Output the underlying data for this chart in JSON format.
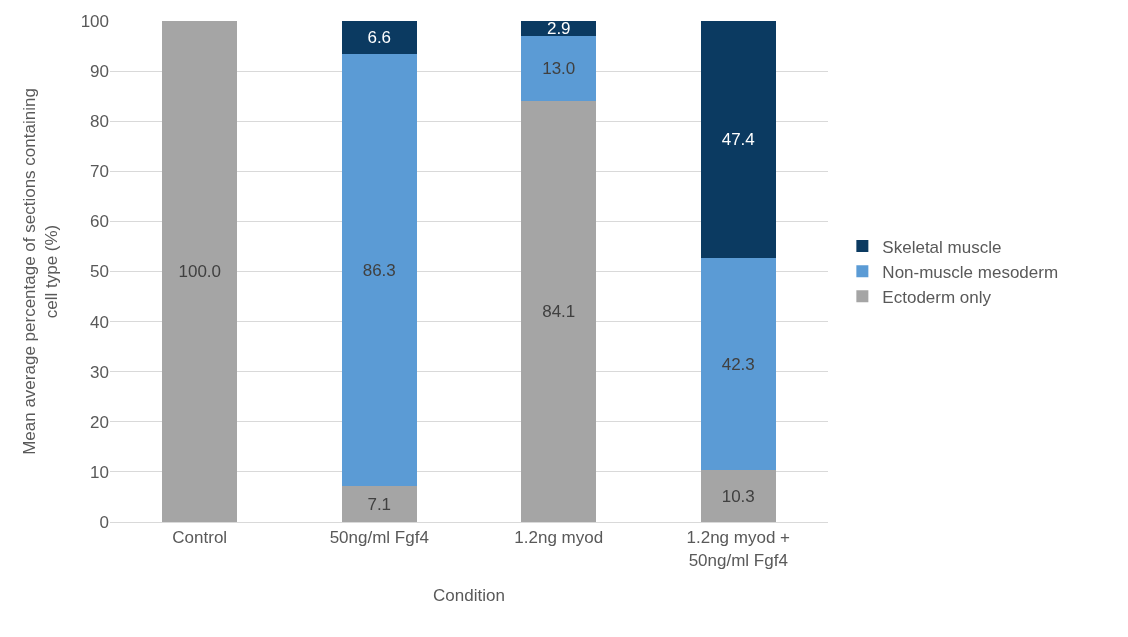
{
  "chart_data": {
    "type": "bar",
    "stacked": true,
    "xlabel": "Condition",
    "ylabel": "Mean average percentage of sections containing cell type (%)",
    "categories": [
      "Control",
      "50ng/ml Fgf4",
      "1.2ng myod",
      "1.2ng myod + 50ng/ml Fgf4"
    ],
    "series": [
      {
        "name": "Ectoderm only",
        "color": "#a5a5a5",
        "values": [
          100.0,
          7.1,
          84.1,
          10.3
        ],
        "value_labels": [
          "100.0",
          "7.1",
          "84.1",
          "10.3"
        ]
      },
      {
        "name": "Non-muscle mesoderm",
        "color": "#5b9bd5",
        "values": [
          0,
          86.3,
          13.0,
          42.3
        ],
        "value_labels": [
          null,
          "86.3",
          "13.0",
          "42.3"
        ]
      },
      {
        "name": "Skeletal muscle",
        "color": "#0b3a61",
        "values": [
          0,
          6.6,
          2.9,
          47.4
        ],
        "value_labels": [
          null,
          "6.6",
          "2.9",
          "47.4"
        ]
      }
    ],
    "ylim": [
      0,
      100
    ],
    "yticks": [
      0,
      10,
      20,
      30,
      40,
      50,
      60,
      70,
      80,
      90,
      100
    ],
    "grid": "y",
    "legend": "right"
  }
}
